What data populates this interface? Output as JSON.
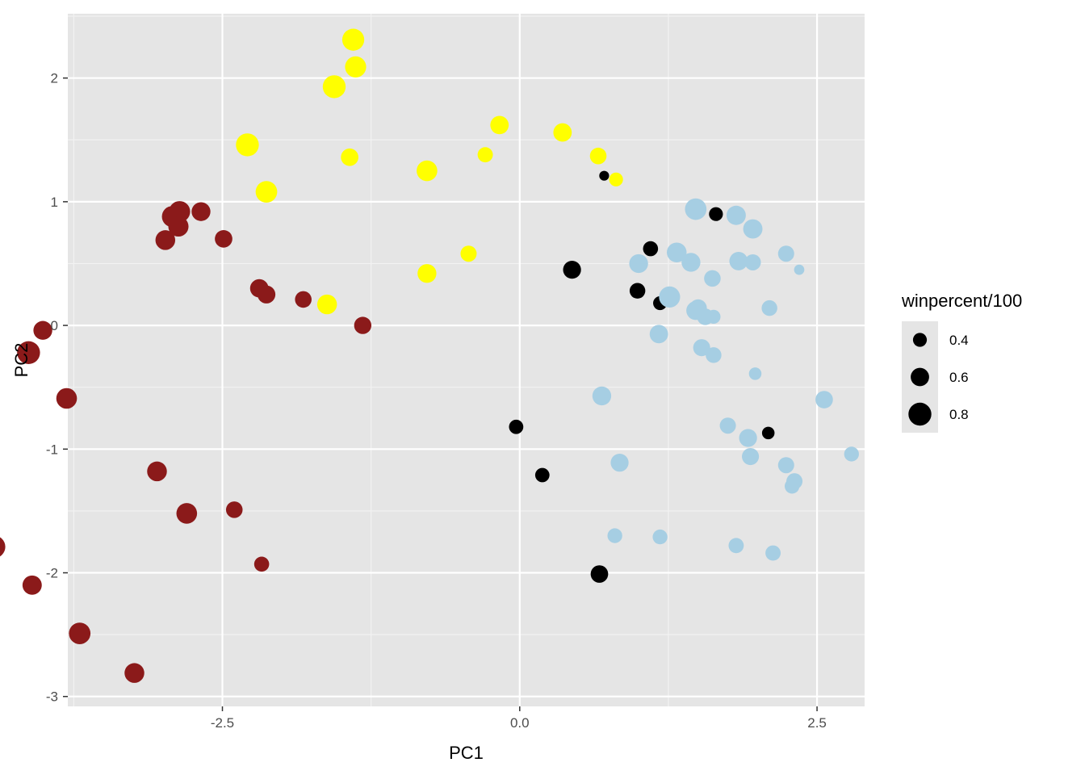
{
  "chart_data": {
    "type": "scatter",
    "title": "",
    "xlabel": "PC1",
    "ylabel": "PC2",
    "xlim": [
      -3.8,
      2.9
    ],
    "ylim": [
      -3.08,
      2.52
    ],
    "x_ticks": [
      -2.5,
      0.0,
      2.5
    ],
    "x_tick_labels": [
      "-2.5",
      "0.0",
      "2.5"
    ],
    "y_ticks": [
      -3,
      -2,
      -1,
      0,
      1,
      2
    ],
    "y_tick_labels": [
      "-3",
      "-2",
      "-1",
      "0",
      "1",
      "2"
    ],
    "grid": true,
    "background": "#e5e5e5",
    "size_legend": {
      "title": "winpercent/100",
      "placement": "right",
      "entries": [
        {
          "label": "0.4",
          "value": 0.4
        },
        {
          "label": "0.6",
          "value": 0.6
        },
        {
          "label": "0.8",
          "value": 0.8
        }
      ]
    },
    "colors": {
      "darkred": "#8b1a1a",
      "yellow": "#ffff00",
      "lightblue": "#a6cee3",
      "black": "#000000"
    },
    "series": [
      {
        "color": "#8b1a1a",
        "points": [
          {
            "x": -2.92,
            "y": 0.88,
            "s": 0.72
          },
          {
            "x": -2.86,
            "y": 0.92,
            "s": 0.72
          },
          {
            "x": -2.87,
            "y": 0.8,
            "s": 0.68
          },
          {
            "x": -2.68,
            "y": 0.92,
            "s": 0.62
          },
          {
            "x": -2.98,
            "y": 0.69,
            "s": 0.66
          },
          {
            "x": -2.49,
            "y": 0.7,
            "s": 0.56
          },
          {
            "x": -2.19,
            "y": 0.3,
            "s": 0.6
          },
          {
            "x": -2.13,
            "y": 0.25,
            "s": 0.58
          },
          {
            "x": -1.82,
            "y": 0.21,
            "s": 0.52
          },
          {
            "x": -1.32,
            "y": 0.0,
            "s": 0.55
          },
          {
            "x": -4.01,
            "y": -0.04,
            "s": 0.62
          },
          {
            "x": -4.13,
            "y": -0.22,
            "s": 0.8
          },
          {
            "x": -3.81,
            "y": -0.59,
            "s": 0.7
          },
          {
            "x": -3.05,
            "y": -1.18,
            "s": 0.66
          },
          {
            "x": -2.8,
            "y": -1.52,
            "s": 0.7
          },
          {
            "x": -2.4,
            "y": -1.49,
            "s": 0.52
          },
          {
            "x": -2.17,
            "y": -1.93,
            "s": 0.45
          },
          {
            "x": -4.42,
            "y": -1.79,
            "s": 0.78
          },
          {
            "x": -4.1,
            "y": -2.1,
            "s": 0.64
          },
          {
            "x": -3.7,
            "y": -2.49,
            "s": 0.74
          },
          {
            "x": -3.24,
            "y": -2.81,
            "s": 0.66
          }
        ]
      },
      {
        "color": "#ffff00",
        "points": [
          {
            "x": -1.4,
            "y": 2.31,
            "s": 0.76
          },
          {
            "x": -1.38,
            "y": 2.09,
            "s": 0.72
          },
          {
            "x": -1.56,
            "y": 1.93,
            "s": 0.8
          },
          {
            "x": -2.29,
            "y": 1.46,
            "s": 0.8
          },
          {
            "x": -2.13,
            "y": 1.08,
            "s": 0.74
          },
          {
            "x": -1.43,
            "y": 1.36,
            "s": 0.56
          },
          {
            "x": -1.62,
            "y": 0.17,
            "s": 0.66
          },
          {
            "x": -0.78,
            "y": 1.25,
            "s": 0.7
          },
          {
            "x": -0.78,
            "y": 0.42,
            "s": 0.62
          },
          {
            "x": -0.43,
            "y": 0.58,
            "s": 0.5
          },
          {
            "x": -0.29,
            "y": 1.38,
            "s": 0.46
          },
          {
            "x": -0.17,
            "y": 1.62,
            "s": 0.6
          },
          {
            "x": 0.36,
            "y": 1.56,
            "s": 0.6
          },
          {
            "x": 0.66,
            "y": 1.37,
            "s": 0.52
          },
          {
            "x": 0.81,
            "y": 1.18,
            "s": 0.4
          }
        ]
      },
      {
        "color": "#000000",
        "points": [
          {
            "x": 0.71,
            "y": 1.21,
            "s": 0.22
          },
          {
            "x": 1.65,
            "y": 0.9,
            "s": 0.4
          },
          {
            "x": 1.1,
            "y": 0.62,
            "s": 0.45
          },
          {
            "x": 0.44,
            "y": 0.45,
            "s": 0.58
          },
          {
            "x": 0.99,
            "y": 0.28,
            "s": 0.48
          },
          {
            "x": 1.18,
            "y": 0.18,
            "s": 0.4
          },
          {
            "x": -0.03,
            "y": -0.82,
            "s": 0.42
          },
          {
            "x": 0.19,
            "y": -1.21,
            "s": 0.42
          },
          {
            "x": 2.09,
            "y": -0.87,
            "s": 0.34
          },
          {
            "x": 0.67,
            "y": -2.01,
            "s": 0.56
          }
        ]
      },
      {
        "color": "#a6cee3",
        "points": [
          {
            "x": 1.48,
            "y": 0.94,
            "s": 0.74
          },
          {
            "x": 1.82,
            "y": 0.89,
            "s": 0.64
          },
          {
            "x": 1.96,
            "y": 0.78,
            "s": 0.64
          },
          {
            "x": 1.32,
            "y": 0.59,
            "s": 0.66
          },
          {
            "x": 1.44,
            "y": 0.51,
            "s": 0.62
          },
          {
            "x": 1.0,
            "y": 0.5,
            "s": 0.62
          },
          {
            "x": 1.84,
            "y": 0.52,
            "s": 0.6
          },
          {
            "x": 1.96,
            "y": 0.51,
            "s": 0.5
          },
          {
            "x": 2.24,
            "y": 0.58,
            "s": 0.5
          },
          {
            "x": 2.35,
            "y": 0.45,
            "s": 0.24
          },
          {
            "x": 1.62,
            "y": 0.38,
            "s": 0.52
          },
          {
            "x": 1.26,
            "y": 0.23,
            "s": 0.72
          },
          {
            "x": 1.5,
            "y": 0.14,
            "s": 0.56
          },
          {
            "x": 1.48,
            "y": 0.12,
            "s": 0.62
          },
          {
            "x": 1.56,
            "y": 0.07,
            "s": 0.52
          },
          {
            "x": 1.63,
            "y": 0.07,
            "s": 0.4
          },
          {
            "x": 2.1,
            "y": 0.14,
            "s": 0.48
          },
          {
            "x": 1.17,
            "y": -0.07,
            "s": 0.6
          },
          {
            "x": 1.53,
            "y": -0.18,
            "s": 0.54
          },
          {
            "x": 1.63,
            "y": -0.24,
            "s": 0.48
          },
          {
            "x": 1.98,
            "y": -0.39,
            "s": 0.34
          },
          {
            "x": 0.69,
            "y": -0.57,
            "s": 0.62
          },
          {
            "x": 2.56,
            "y": -0.6,
            "s": 0.56
          },
          {
            "x": 1.75,
            "y": -0.81,
            "s": 0.5
          },
          {
            "x": 1.92,
            "y": -0.91,
            "s": 0.58
          },
          {
            "x": 1.94,
            "y": -1.06,
            "s": 0.54
          },
          {
            "x": 0.84,
            "y": -1.11,
            "s": 0.58
          },
          {
            "x": 2.24,
            "y": -1.13,
            "s": 0.5
          },
          {
            "x": 2.31,
            "y": -1.26,
            "s": 0.5
          },
          {
            "x": 2.29,
            "y": -1.3,
            "s": 0.44
          },
          {
            "x": 2.79,
            "y": -1.04,
            "s": 0.44
          },
          {
            "x": 0.8,
            "y": -1.7,
            "s": 0.44
          },
          {
            "x": 1.18,
            "y": -1.71,
            "s": 0.44
          },
          {
            "x": 1.82,
            "y": -1.78,
            "s": 0.46
          },
          {
            "x": 2.13,
            "y": -1.84,
            "s": 0.46
          }
        ]
      }
    ]
  }
}
